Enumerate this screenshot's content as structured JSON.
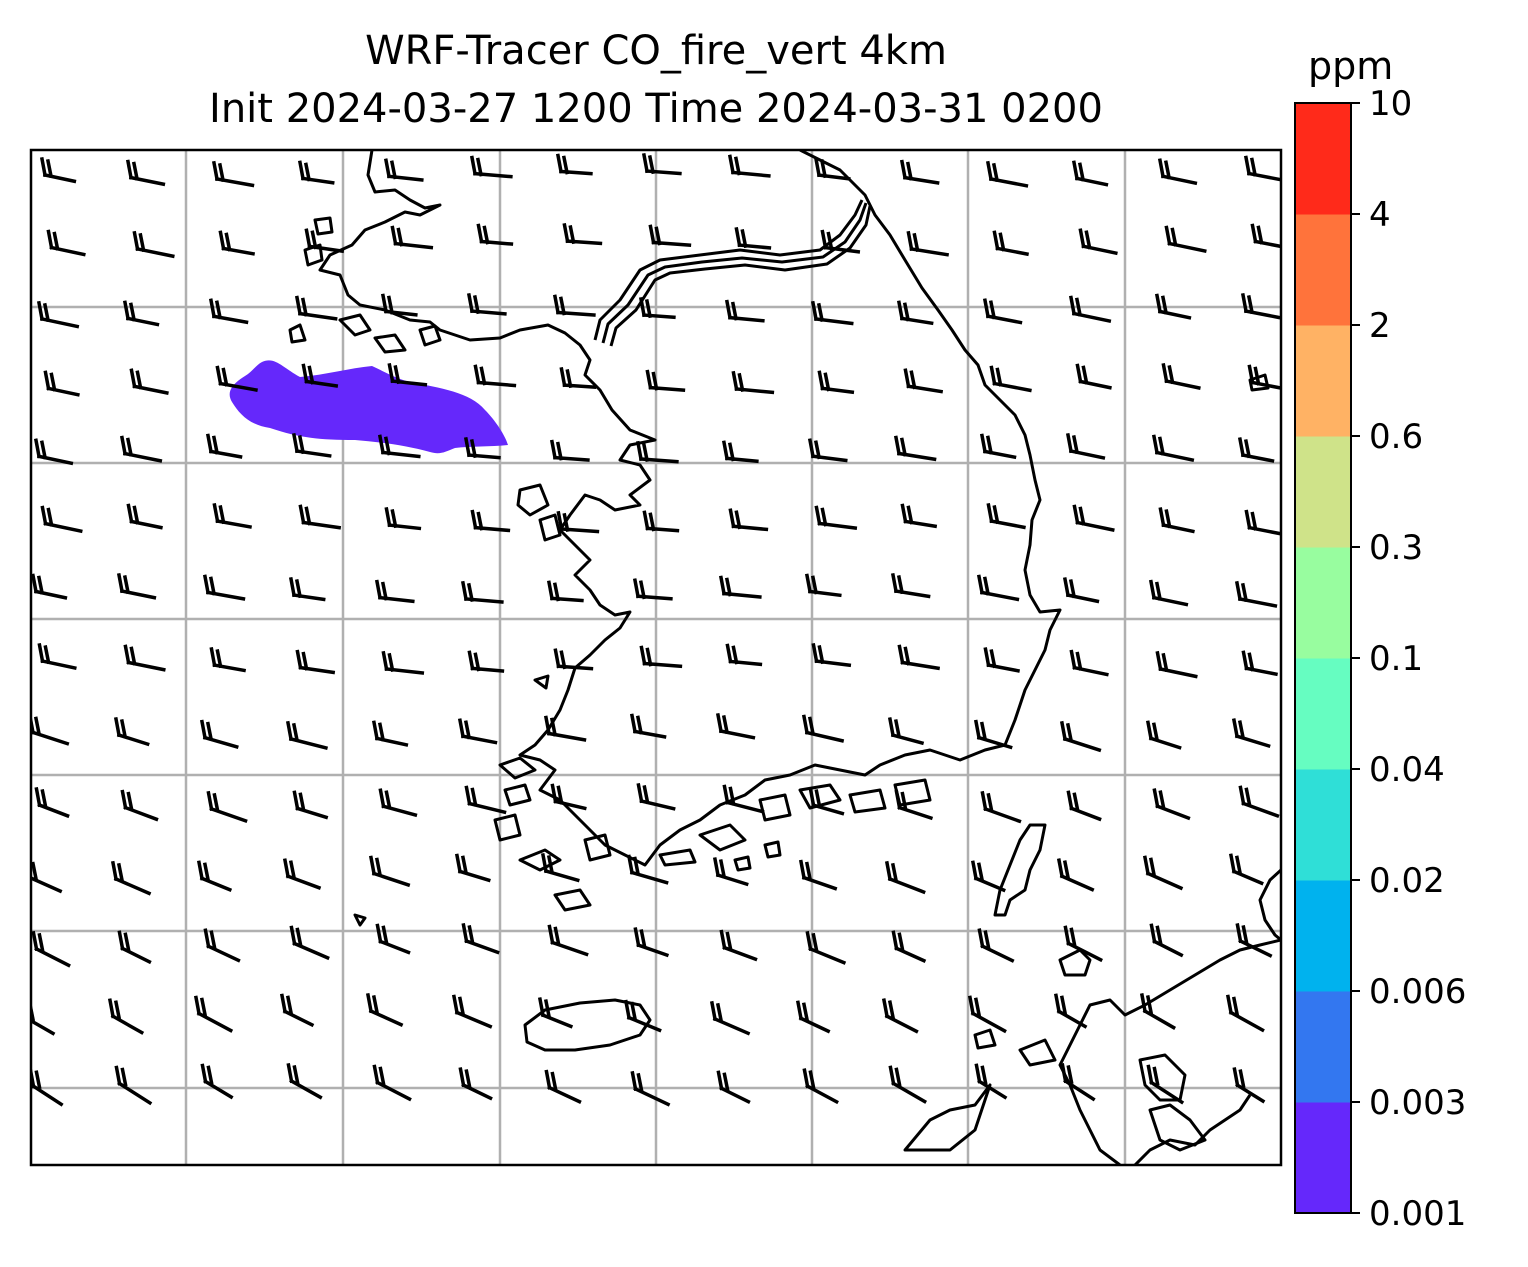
{
  "title": {
    "line1": "WRF-Tracer CO_fire_vert 4km",
    "line2": "Init 2024-03-27 1200 Time 2024-03-31 0200"
  },
  "colorbar": {
    "unit": "ppm",
    "levels": [
      "0.001",
      "0.003",
      "0.006",
      "0.02",
      "0.04",
      "0.1",
      "0.3",
      "0.6",
      "2",
      "4",
      "10"
    ],
    "colors": [
      "#6528fb",
      "#3377f0",
      "#00b2ee",
      "#2fdfd7",
      "#66fdc1",
      "#98fd9f",
      "#cfe389",
      "#ffb264",
      "#ff733b",
      "#ff2a1a"
    ]
  },
  "map": {
    "land_outline_color": "#000000",
    "grid_color": "#b0b0b0",
    "plume_color": "#6528fb",
    "plume_level": "0.001"
  }
}
